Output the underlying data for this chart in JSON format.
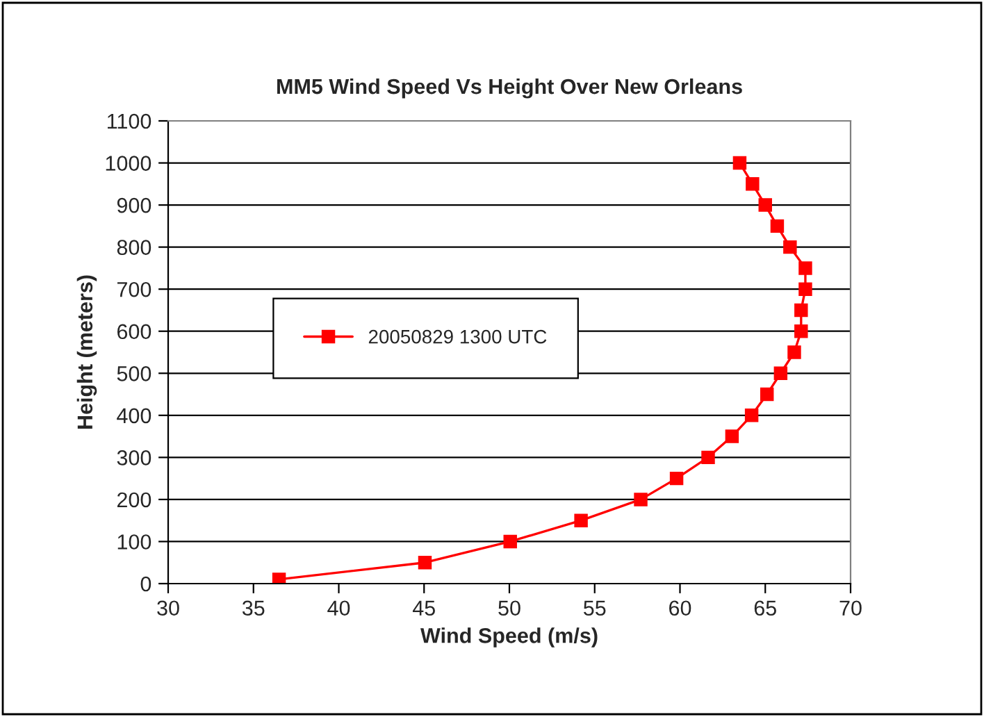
{
  "chart_data": {
    "type": "line",
    "title": "MM5 Wind Speed Vs Height Over New Orleans",
    "xlabel": "Wind Speed (m/s)",
    "ylabel": "Height (meters)",
    "x": [
      36.5,
      45.05,
      50.05,
      54.2,
      57.7,
      59.8,
      61.65,
      63.05,
      64.2,
      65.1,
      65.9,
      66.7,
      67.1,
      67.1,
      67.35,
      67.35,
      66.45,
      65.7,
      65.0,
      64.25,
      63.5
    ],
    "series": [
      {
        "name": "20050829 1300 UTC",
        "color": "#ff0000",
        "values": [
          10,
          50,
          100,
          150,
          200,
          250,
          300,
          350,
          400,
          450,
          500,
          550,
          600,
          650,
          700,
          750,
          800,
          850,
          900,
          950,
          1000
        ]
      }
    ],
    "xlim": [
      30,
      70
    ],
    "xticks": [
      30,
      35,
      40,
      45,
      50,
      55,
      60,
      65,
      70
    ],
    "ylim": [
      0,
      1100
    ],
    "yticks": [
      0,
      100,
      200,
      300,
      400,
      500,
      600,
      700,
      800,
      900,
      1000,
      1100
    ],
    "grid": "y",
    "legend": "left",
    "marker": "square",
    "line_style": "solid"
  }
}
